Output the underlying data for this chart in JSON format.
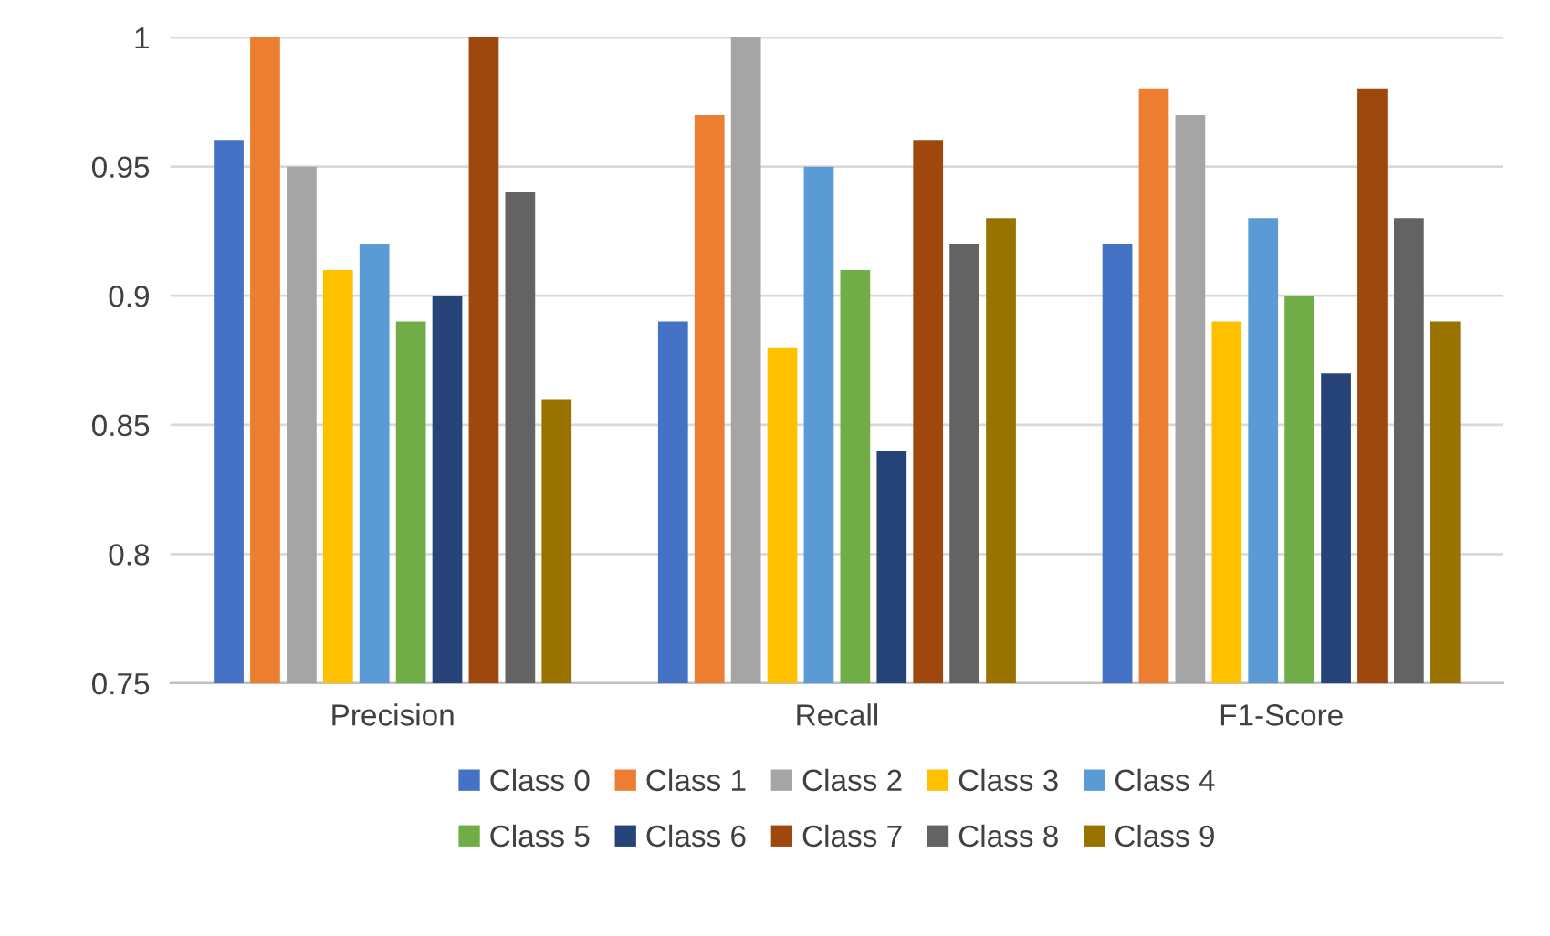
{
  "chart_data": {
    "type": "bar",
    "categories": [
      "Precision",
      "Recall",
      "F1-Score"
    ],
    "series": [
      {
        "name": "Class 0",
        "color": "#4472c4",
        "values": [
          0.96,
          0.89,
          0.92
        ]
      },
      {
        "name": "Class 1",
        "color": "#ed7d31",
        "values": [
          1,
          0.97,
          0.98
        ]
      },
      {
        "name": "Class 2",
        "color": "#a5a5a5",
        "values": [
          0.95,
          1,
          0.97
        ]
      },
      {
        "name": "Class 3",
        "color": "#ffc000",
        "values": [
          0.91,
          0.88,
          0.89
        ]
      },
      {
        "name": "Class 4",
        "color": "#5b9bd5",
        "values": [
          0.92,
          0.95,
          0.93
        ]
      },
      {
        "name": "Class 5",
        "color": "#70ad47",
        "values": [
          0.89,
          0.91,
          0.9
        ]
      },
      {
        "name": "Class 6",
        "color": "#264478",
        "values": [
          0.9,
          0.84,
          0.87
        ]
      },
      {
        "name": "Class 7",
        "color": "#9e480e",
        "values": [
          1,
          0.96,
          0.98
        ]
      },
      {
        "name": "Class 8",
        "color": "#636363",
        "values": [
          0.94,
          0.92,
          0.93
        ]
      },
      {
        "name": "Class 9",
        "color": "#997300",
        "values": [
          0.86,
          0.93,
          0.89
        ]
      }
    ],
    "ylim": [
      0.75,
      1
    ],
    "yticks": [
      0.75,
      0.8,
      0.85,
      0.9,
      0.95,
      1
    ],
    "grid": "y",
    "legend": "bottom"
  }
}
